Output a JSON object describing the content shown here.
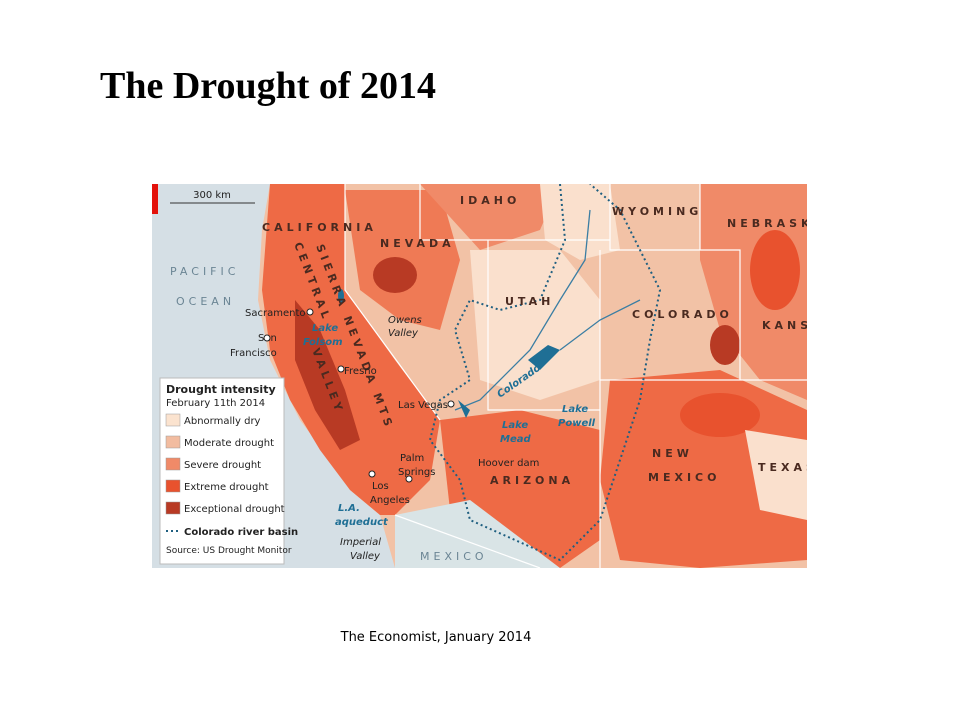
{
  "title": "The Drought of 2014",
  "caption": "The Economist, January 2014",
  "map": {
    "scale": "300 km",
    "labels": [
      "IDAHO",
      "WYOMING",
      "NEBRASKA",
      "CALIFORNIA",
      "NEVADA",
      "UTAH",
      "COLORADO",
      "KANSAS",
      "NEW",
      "MEXICO",
      "TEXAS",
      "ARIZONA",
      "MEXICO",
      "PACIFIC",
      "OCEAN",
      "SIERRA NEVADA MTS",
      "CENTRAL",
      "VALLEY",
      "Sacramento",
      "San",
      "Francisco",
      "Lake",
      "Folsom",
      "Owens",
      "Valley",
      "Fresno",
      "Las Vegas",
      "Colorado",
      "Lake",
      "Mead",
      "Lake",
      "Powell",
      "Hoover dam",
      "Palm",
      "Springs",
      "Los",
      "Angeles",
      "L.A.",
      "aqueduct",
      "Imperial",
      "Valley"
    ],
    "legend": {
      "title": "Drought intensity",
      "subtitle": "February 11th 2014",
      "items": [
        {
          "label": "Abnormally dry",
          "color": "#fbe3cf"
        },
        {
          "label": "Moderate drought",
          "color": "#f2bca0"
        },
        {
          "label": "Severe drought",
          "color": "#f08a68"
        },
        {
          "label": "Extreme drought",
          "color": "#e8522e"
        },
        {
          "label": "Exceptional drought",
          "color": "#b83a24"
        }
      ],
      "basin": "Colorado river basin",
      "source": "Source: US Drought Monitor"
    }
  }
}
